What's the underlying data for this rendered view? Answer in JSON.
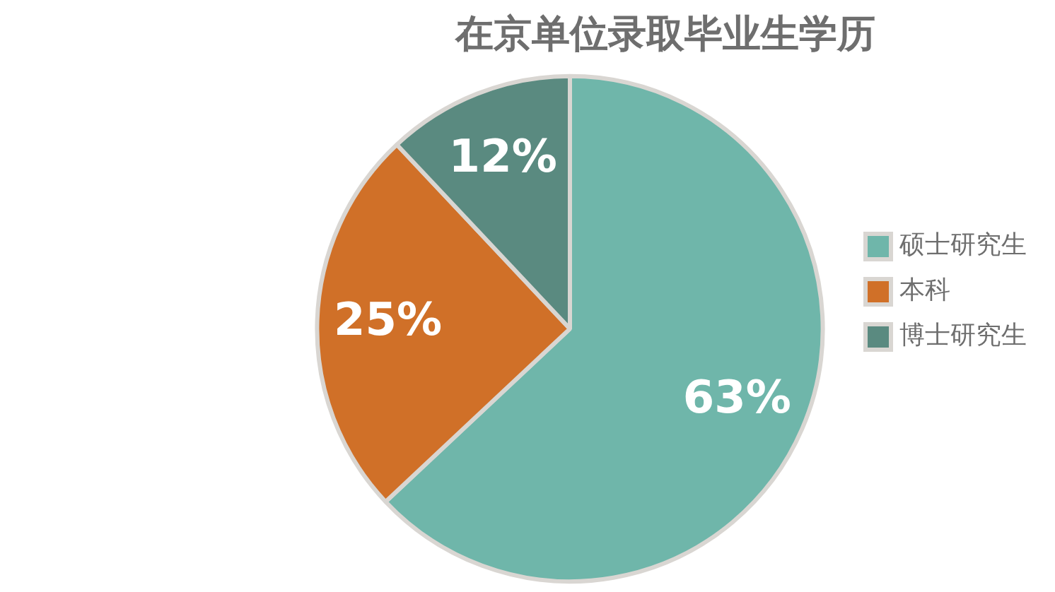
{
  "chart_data": {
    "type": "pie",
    "title": "在京单位录取毕业生学历",
    "categories": [
      "硕士研究生",
      "本科",
      "博士研究生"
    ],
    "values": [
      63,
      25,
      12
    ],
    "colors": [
      "#6fb6aa",
      "#d07028",
      "#5a8a80"
    ],
    "value_labels": [
      "63%",
      "25%",
      "12%"
    ],
    "legend": "right"
  }
}
